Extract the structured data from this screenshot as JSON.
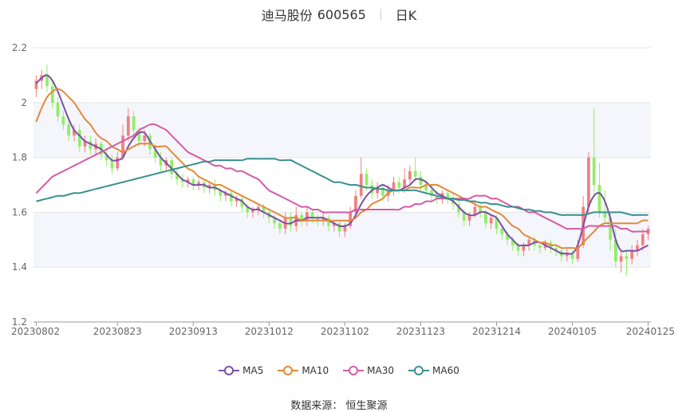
{
  "header": {
    "stock_name": "迪马股份",
    "stock_code": "600565",
    "period": "日K"
  },
  "source": "数据来源： 恒生聚源",
  "colors": {
    "up": "#f08080",
    "down": "#90ee66",
    "ma5": "#7b4fa8",
    "ma10": "#e3893a",
    "ma30": "#d65aa6",
    "ma60": "#3a9090",
    "grid_band": "#f5f6fb",
    "grid_line": "#e6e6e6"
  },
  "legend": [
    {
      "label": "MA5",
      "color": "#7b4fa8"
    },
    {
      "label": "MA10",
      "color": "#e3893a"
    },
    {
      "label": "MA30",
      "color": "#d65aa6"
    },
    {
      "label": "MA60",
      "color": "#3a9090"
    }
  ],
  "chart_data": {
    "type": "candlestick",
    "title": "迪马股份 600565 日K",
    "ylim": [
      1.2,
      2.2
    ],
    "yticks": [
      "1.2",
      "1.4",
      "1.6",
      "1.8",
      "2",
      "2.2"
    ],
    "yticks_values": [
      1.2,
      1.4,
      1.6,
      1.8,
      2.0,
      2.2
    ],
    "xtick_labels": [
      "20230802",
      "20230823",
      "20230913",
      "20231012",
      "20231102",
      "20231123",
      "20231214",
      "20240105",
      "20240125"
    ],
    "xtick_indices": [
      0,
      15,
      29,
      43,
      57,
      71,
      85,
      99,
      113
    ],
    "candles": [
      [
        2.05,
        2.08,
        2.02,
        2.1
      ],
      [
        2.08,
        2.1,
        2.05,
        2.12
      ],
      [
        2.1,
        2.06,
        2.04,
        2.14
      ],
      [
        2.06,
        2.0,
        1.98,
        2.08
      ],
      [
        2.0,
        1.95,
        1.93,
        2.02
      ],
      [
        1.95,
        1.92,
        1.9,
        1.97
      ],
      [
        1.92,
        1.88,
        1.86,
        1.94
      ],
      [
        1.88,
        1.9,
        1.86,
        1.92
      ],
      [
        1.9,
        1.84,
        1.82,
        1.92
      ],
      [
        1.84,
        1.86,
        1.82,
        1.88
      ],
      [
        1.86,
        1.83,
        1.81,
        1.88
      ],
      [
        1.83,
        1.85,
        1.81,
        1.87
      ],
      [
        1.85,
        1.81,
        1.79,
        1.86
      ],
      [
        1.81,
        1.79,
        1.77,
        1.83
      ],
      [
        1.79,
        1.76,
        1.74,
        1.81
      ],
      [
        1.76,
        1.8,
        1.75,
        1.82
      ],
      [
        1.8,
        1.88,
        1.79,
        1.92
      ],
      [
        1.88,
        1.95,
        1.86,
        1.98
      ],
      [
        1.95,
        1.9,
        1.88,
        1.97
      ],
      [
        1.9,
        1.86,
        1.84,
        1.91
      ],
      [
        1.86,
        1.88,
        1.84,
        1.9
      ],
      [
        1.88,
        1.83,
        1.81,
        1.89
      ],
      [
        1.83,
        1.8,
        1.78,
        1.85
      ],
      [
        1.8,
        1.77,
        1.75,
        1.82
      ],
      [
        1.77,
        1.79,
        1.75,
        1.8
      ],
      [
        1.79,
        1.74,
        1.72,
        1.8
      ],
      [
        1.74,
        1.72,
        1.7,
        1.76
      ],
      [
        1.72,
        1.71,
        1.69,
        1.74
      ],
      [
        1.71,
        1.72,
        1.69,
        1.73
      ],
      [
        1.72,
        1.7,
        1.68,
        1.73
      ],
      [
        1.7,
        1.71,
        1.68,
        1.72
      ],
      [
        1.71,
        1.69,
        1.67,
        1.72
      ],
      [
        1.69,
        1.7,
        1.67,
        1.71
      ],
      [
        1.7,
        1.68,
        1.66,
        1.72
      ],
      [
        1.68,
        1.66,
        1.64,
        1.69
      ],
      [
        1.66,
        1.67,
        1.64,
        1.68
      ],
      [
        1.67,
        1.64,
        1.62,
        1.68
      ],
      [
        1.64,
        1.65,
        1.62,
        1.66
      ],
      [
        1.65,
        1.62,
        1.6,
        1.66
      ],
      [
        1.62,
        1.6,
        1.58,
        1.63
      ],
      [
        1.6,
        1.61,
        1.58,
        1.62
      ],
      [
        1.61,
        1.62,
        1.59,
        1.63
      ],
      [
        1.62,
        1.6,
        1.58,
        1.63
      ],
      [
        1.6,
        1.58,
        1.56,
        1.61
      ],
      [
        1.58,
        1.56,
        1.54,
        1.59
      ],
      [
        1.56,
        1.54,
        1.52,
        1.57
      ],
      [
        1.54,
        1.58,
        1.52,
        1.6
      ],
      [
        1.58,
        1.55,
        1.53,
        1.6
      ],
      [
        1.55,
        1.59,
        1.53,
        1.62
      ],
      [
        1.59,
        1.57,
        1.55,
        1.6
      ],
      [
        1.57,
        1.6,
        1.55,
        1.62
      ],
      [
        1.6,
        1.58,
        1.56,
        1.61
      ],
      [
        1.58,
        1.57,
        1.55,
        1.59
      ],
      [
        1.57,
        1.58,
        1.55,
        1.6
      ],
      [
        1.58,
        1.55,
        1.53,
        1.59
      ],
      [
        1.55,
        1.56,
        1.53,
        1.57
      ],
      [
        1.56,
        1.53,
        1.51,
        1.57
      ],
      [
        1.53,
        1.55,
        1.51,
        1.56
      ],
      [
        1.55,
        1.6,
        1.54,
        1.62
      ],
      [
        1.6,
        1.66,
        1.59,
        1.68
      ],
      [
        1.66,
        1.74,
        1.65,
        1.8
      ],
      [
        1.74,
        1.7,
        1.68,
        1.76
      ],
      [
        1.7,
        1.67,
        1.65,
        1.72
      ],
      [
        1.67,
        1.69,
        1.65,
        1.71
      ],
      [
        1.69,
        1.66,
        1.64,
        1.7
      ],
      [
        1.66,
        1.68,
        1.64,
        1.7
      ],
      [
        1.68,
        1.71,
        1.66,
        1.73
      ],
      [
        1.71,
        1.69,
        1.67,
        1.73
      ],
      [
        1.69,
        1.72,
        1.67,
        1.76
      ],
      [
        1.72,
        1.75,
        1.7,
        1.77
      ],
      [
        1.75,
        1.73,
        1.71,
        1.8
      ],
      [
        1.73,
        1.7,
        1.68,
        1.75
      ],
      [
        1.7,
        1.68,
        1.66,
        1.72
      ],
      [
        1.68,
        1.66,
        1.64,
        1.7
      ],
      [
        1.66,
        1.65,
        1.63,
        1.68
      ],
      [
        1.65,
        1.67,
        1.63,
        1.68
      ],
      [
        1.67,
        1.65,
        1.63,
        1.68
      ],
      [
        1.65,
        1.63,
        1.61,
        1.67
      ],
      [
        1.63,
        1.6,
        1.58,
        1.64
      ],
      [
        1.6,
        1.57,
        1.55,
        1.61
      ],
      [
        1.57,
        1.59,
        1.55,
        1.6
      ],
      [
        1.59,
        1.62,
        1.58,
        1.64
      ],
      [
        1.62,
        1.6,
        1.58,
        1.63
      ],
      [
        1.6,
        1.56,
        1.54,
        1.61
      ],
      [
        1.56,
        1.58,
        1.54,
        1.59
      ],
      [
        1.58,
        1.54,
        1.52,
        1.59
      ],
      [
        1.54,
        1.52,
        1.5,
        1.55
      ],
      [
        1.52,
        1.5,
        1.48,
        1.53
      ],
      [
        1.5,
        1.48,
        1.46,
        1.51
      ],
      [
        1.48,
        1.46,
        1.44,
        1.49
      ],
      [
        1.46,
        1.48,
        1.44,
        1.49
      ],
      [
        1.48,
        1.5,
        1.46,
        1.51
      ],
      [
        1.5,
        1.48,
        1.46,
        1.51
      ],
      [
        1.48,
        1.47,
        1.45,
        1.49
      ],
      [
        1.47,
        1.49,
        1.46,
        1.5
      ],
      [
        1.49,
        1.47,
        1.45,
        1.5
      ],
      [
        1.47,
        1.46,
        1.44,
        1.48
      ],
      [
        1.46,
        1.44,
        1.42,
        1.47
      ],
      [
        1.44,
        1.45,
        1.42,
        1.47
      ],
      [
        1.45,
        1.43,
        1.41,
        1.46
      ],
      [
        1.43,
        1.48,
        1.42,
        1.5
      ],
      [
        1.48,
        1.62,
        1.47,
        1.66
      ],
      [
        1.62,
        1.8,
        1.6,
        1.82
      ],
      [
        1.8,
        1.7,
        1.66,
        1.98
      ],
      [
        1.7,
        1.6,
        1.58,
        1.78
      ],
      [
        1.6,
        1.58,
        1.56,
        1.68
      ],
      [
        1.58,
        1.5,
        1.46,
        1.6
      ],
      [
        1.5,
        1.42,
        1.4,
        1.54
      ],
      [
        1.42,
        1.44,
        1.38,
        1.46
      ],
      [
        1.44,
        1.43,
        1.37,
        1.46
      ],
      [
        1.43,
        1.46,
        1.41,
        1.48
      ],
      [
        1.46,
        1.48,
        1.44,
        1.5
      ],
      [
        1.48,
        1.52,
        1.46,
        1.54
      ],
      [
        1.52,
        1.54,
        1.5,
        1.55
      ]
    ],
    "series": [
      {
        "name": "MA5",
        "values": [
          2.07,
          2.09,
          2.1,
          2.08,
          2.04,
          1.99,
          1.94,
          1.9,
          1.88,
          1.86,
          1.85,
          1.84,
          1.83,
          1.81,
          1.79,
          1.79,
          1.8,
          1.84,
          1.87,
          1.89,
          1.89,
          1.86,
          1.83,
          1.8,
          1.78,
          1.76,
          1.74,
          1.72,
          1.71,
          1.7,
          1.7,
          1.7,
          1.69,
          1.69,
          1.68,
          1.67,
          1.66,
          1.65,
          1.64,
          1.62,
          1.61,
          1.61,
          1.6,
          1.59,
          1.58,
          1.57,
          1.56,
          1.56,
          1.57,
          1.57,
          1.58,
          1.58,
          1.58,
          1.58,
          1.57,
          1.56,
          1.55,
          1.55,
          1.56,
          1.59,
          1.63,
          1.66,
          1.68,
          1.69,
          1.7,
          1.69,
          1.68,
          1.68,
          1.69,
          1.7,
          1.72,
          1.72,
          1.71,
          1.69,
          1.67,
          1.66,
          1.65,
          1.64,
          1.62,
          1.6,
          1.59,
          1.59,
          1.6,
          1.6,
          1.59,
          1.58,
          1.55,
          1.52,
          1.5,
          1.48,
          1.48,
          1.48,
          1.49,
          1.49,
          1.48,
          1.47,
          1.46,
          1.45,
          1.45,
          1.45,
          1.48,
          1.55,
          1.62,
          1.66,
          1.67,
          1.64,
          1.58,
          1.5,
          1.46,
          1.46,
          1.46,
          1.46,
          1.47,
          1.48
        ]
      },
      {
        "name": "MA10",
        "values": [
          1.93,
          1.98,
          2.02,
          2.04,
          2.05,
          2.04,
          2.02,
          2.0,
          1.97,
          1.94,
          1.92,
          1.89,
          1.87,
          1.86,
          1.84,
          1.83,
          1.82,
          1.83,
          1.84,
          1.85,
          1.85,
          1.85,
          1.84,
          1.84,
          1.84,
          1.82,
          1.8,
          1.78,
          1.76,
          1.75,
          1.73,
          1.72,
          1.71,
          1.7,
          1.7,
          1.69,
          1.68,
          1.67,
          1.66,
          1.65,
          1.64,
          1.63,
          1.62,
          1.61,
          1.6,
          1.59,
          1.58,
          1.58,
          1.58,
          1.57,
          1.57,
          1.57,
          1.57,
          1.57,
          1.57,
          1.57,
          1.57,
          1.57,
          1.57,
          1.58,
          1.6,
          1.61,
          1.63,
          1.64,
          1.65,
          1.67,
          1.68,
          1.68,
          1.68,
          1.69,
          1.69,
          1.69,
          1.7,
          1.7,
          1.7,
          1.69,
          1.68,
          1.67,
          1.66,
          1.65,
          1.64,
          1.63,
          1.62,
          1.62,
          1.61,
          1.6,
          1.59,
          1.57,
          1.55,
          1.54,
          1.52,
          1.51,
          1.5,
          1.49,
          1.49,
          1.48,
          1.48,
          1.47,
          1.47,
          1.47,
          1.47,
          1.49,
          1.51,
          1.53,
          1.55,
          1.56,
          1.56,
          1.56,
          1.56,
          1.56,
          1.56,
          1.56,
          1.57,
          1.57
        ]
      },
      {
        "name": "MA30",
        "values": [
          1.67,
          1.69,
          1.71,
          1.73,
          1.74,
          1.75,
          1.76,
          1.77,
          1.78,
          1.79,
          1.8,
          1.81,
          1.82,
          1.83,
          1.84,
          1.85,
          1.86,
          1.87,
          1.88,
          1.9,
          1.91,
          1.92,
          1.92,
          1.91,
          1.9,
          1.88,
          1.86,
          1.84,
          1.82,
          1.81,
          1.8,
          1.79,
          1.78,
          1.77,
          1.77,
          1.76,
          1.76,
          1.75,
          1.75,
          1.74,
          1.73,
          1.72,
          1.7,
          1.68,
          1.67,
          1.66,
          1.65,
          1.64,
          1.63,
          1.62,
          1.62,
          1.61,
          1.61,
          1.6,
          1.6,
          1.6,
          1.6,
          1.6,
          1.6,
          1.61,
          1.61,
          1.61,
          1.61,
          1.61,
          1.61,
          1.61,
          1.61,
          1.61,
          1.62,
          1.62,
          1.63,
          1.63,
          1.64,
          1.64,
          1.65,
          1.65,
          1.65,
          1.65,
          1.65,
          1.65,
          1.65,
          1.66,
          1.66,
          1.66,
          1.65,
          1.65,
          1.64,
          1.63,
          1.62,
          1.62,
          1.61,
          1.6,
          1.6,
          1.59,
          1.58,
          1.57,
          1.56,
          1.55,
          1.54,
          1.54,
          1.54,
          1.54,
          1.55,
          1.55,
          1.55,
          1.55,
          1.55,
          1.55,
          1.54,
          1.54,
          1.53,
          1.53,
          1.53,
          1.53
        ]
      },
      {
        "name": "MA60",
        "values": [
          1.64,
          1.645,
          1.65,
          1.655,
          1.66,
          1.66,
          1.665,
          1.67,
          1.67,
          1.675,
          1.68,
          1.685,
          1.69,
          1.695,
          1.7,
          1.705,
          1.71,
          1.715,
          1.72,
          1.725,
          1.73,
          1.735,
          1.74,
          1.745,
          1.75,
          1.755,
          1.76,
          1.765,
          1.77,
          1.775,
          1.78,
          1.785,
          1.785,
          1.79,
          1.79,
          1.79,
          1.79,
          1.79,
          1.79,
          1.795,
          1.795,
          1.795,
          1.795,
          1.795,
          1.795,
          1.79,
          1.79,
          1.79,
          1.78,
          1.77,
          1.76,
          1.75,
          1.74,
          1.73,
          1.72,
          1.71,
          1.71,
          1.705,
          1.7,
          1.7,
          1.695,
          1.69,
          1.69,
          1.685,
          1.685,
          1.68,
          1.68,
          1.68,
          1.68,
          1.68,
          1.68,
          1.675,
          1.67,
          1.665,
          1.66,
          1.655,
          1.65,
          1.65,
          1.645,
          1.645,
          1.64,
          1.64,
          1.635,
          1.635,
          1.63,
          1.63,
          1.625,
          1.62,
          1.62,
          1.615,
          1.61,
          1.61,
          1.605,
          1.605,
          1.6,
          1.6,
          1.595,
          1.59,
          1.59,
          1.59,
          1.59,
          1.59,
          1.595,
          1.6,
          1.6,
          1.6,
          1.6,
          1.6,
          1.6,
          1.595,
          1.59,
          1.59,
          1.59,
          1.59
        ]
      }
    ]
  }
}
